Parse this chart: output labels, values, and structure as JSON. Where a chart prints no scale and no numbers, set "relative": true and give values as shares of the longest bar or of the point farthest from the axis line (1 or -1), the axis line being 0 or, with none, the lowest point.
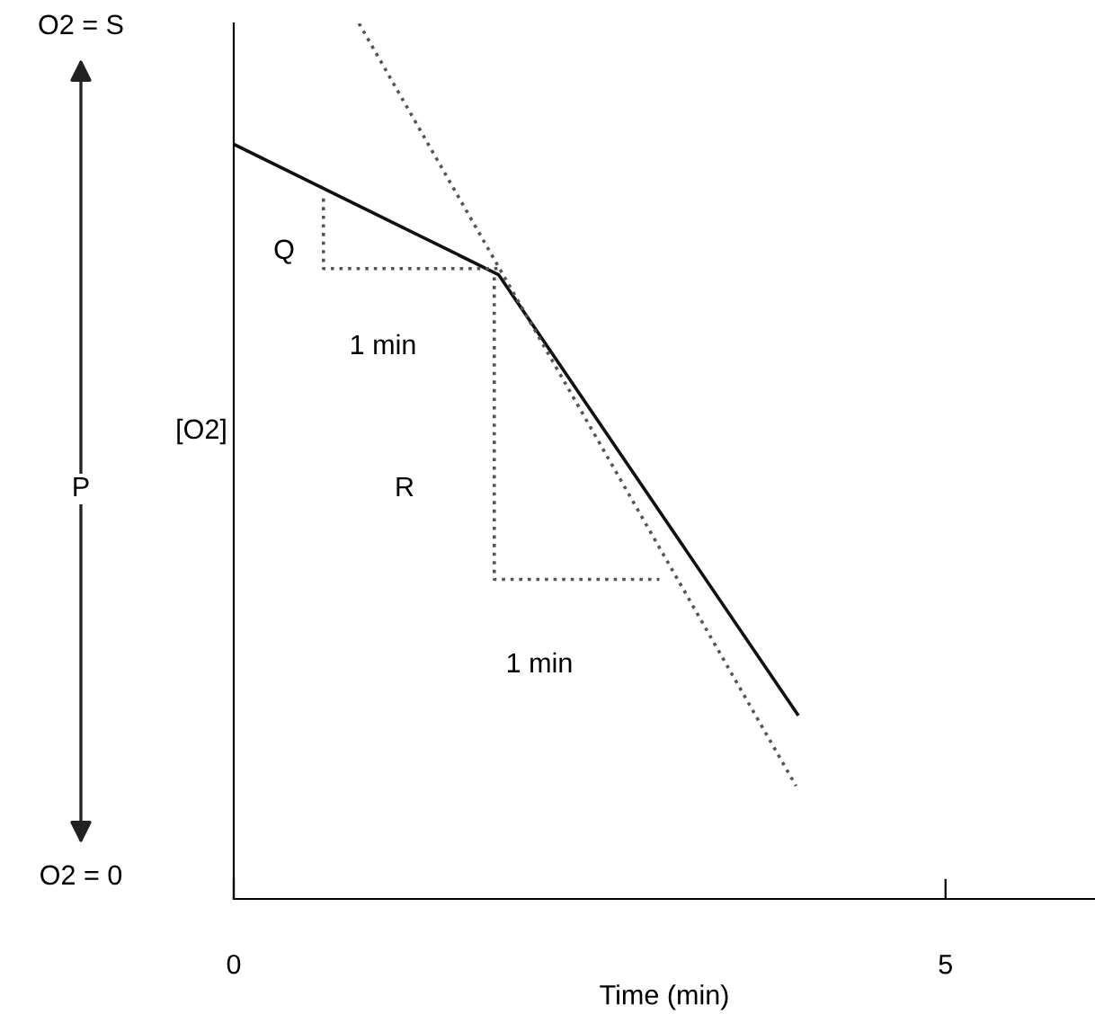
{
  "chart_data": {
    "type": "line",
    "relative": true,
    "xlabel": "Time (min)",
    "ylabel": "[O2]",
    "xlim": [
      0,
      6.05
    ],
    "xticks": [
      0,
      5
    ],
    "series": [
      {
        "color": "#111111",
        "line_style": "solid",
        "x": [
          0,
          1.86,
          3.96
        ],
        "values": [
          0.862,
          0.713,
          0.211
        ]
      },
      {
        "color": "#555555",
        "line_style": "dotted",
        "x": [
          0.88,
          3.95
        ],
        "values": [
          1.0,
          0.129
        ]
      },
      {
        "color": "#555555",
        "line_style": "dotted",
        "x": [
          0.63,
          0.63,
          1.86
        ],
        "values": [
          0.8,
          0.72,
          0.72
        ]
      },
      {
        "color": "#555555",
        "line_style": "dotted",
        "x": [
          1.83,
          1.83,
          2.99
        ],
        "values": [
          0.71,
          0.365,
          0.365
        ]
      }
    ],
    "annotations": [
      "O2 = S",
      "P",
      "O2 = 0",
      "Q",
      "1 min",
      "R",
      "1 min"
    ],
    "grid": false,
    "legend": false,
    "marker": "none"
  }
}
